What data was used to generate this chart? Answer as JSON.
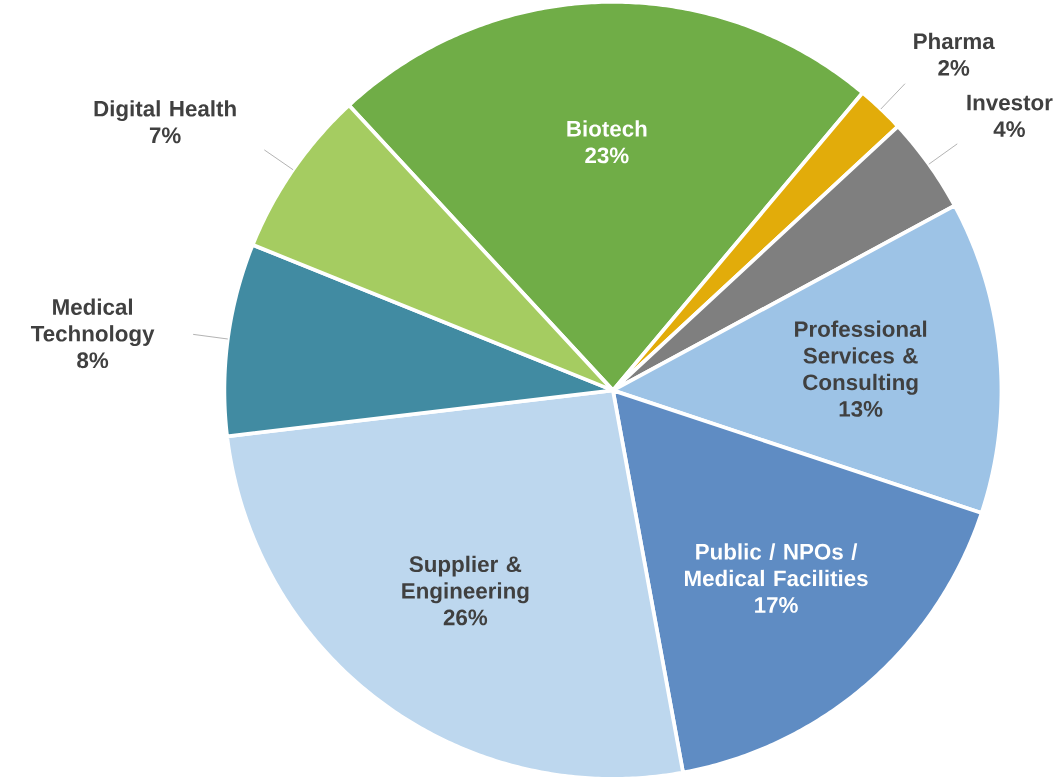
{
  "chart_data": {
    "type": "pie",
    "categories": [
      "Biotech",
      "Pharma",
      "Investor",
      "Professional Services & Consulting",
      "Public  / NPOs / Medical Facilities",
      "Supplier & Engineering",
      "Medical Technology",
      "Digital Health"
    ],
    "values": [
      23,
      2,
      4,
      13,
      17,
      26,
      8,
      7
    ],
    "value_labels": [
      "23%",
      "2%",
      "4%",
      "13%",
      "17%",
      "26%",
      "8%",
      "7%"
    ],
    "colors": [
      "#70ad47",
      "#e2ac0a",
      "#7f7f7f",
      "#9dc3e6",
      "#5f8cc3",
      "#bdd7ee",
      "#418ba2",
      "#a5cc61"
    ]
  }
}
